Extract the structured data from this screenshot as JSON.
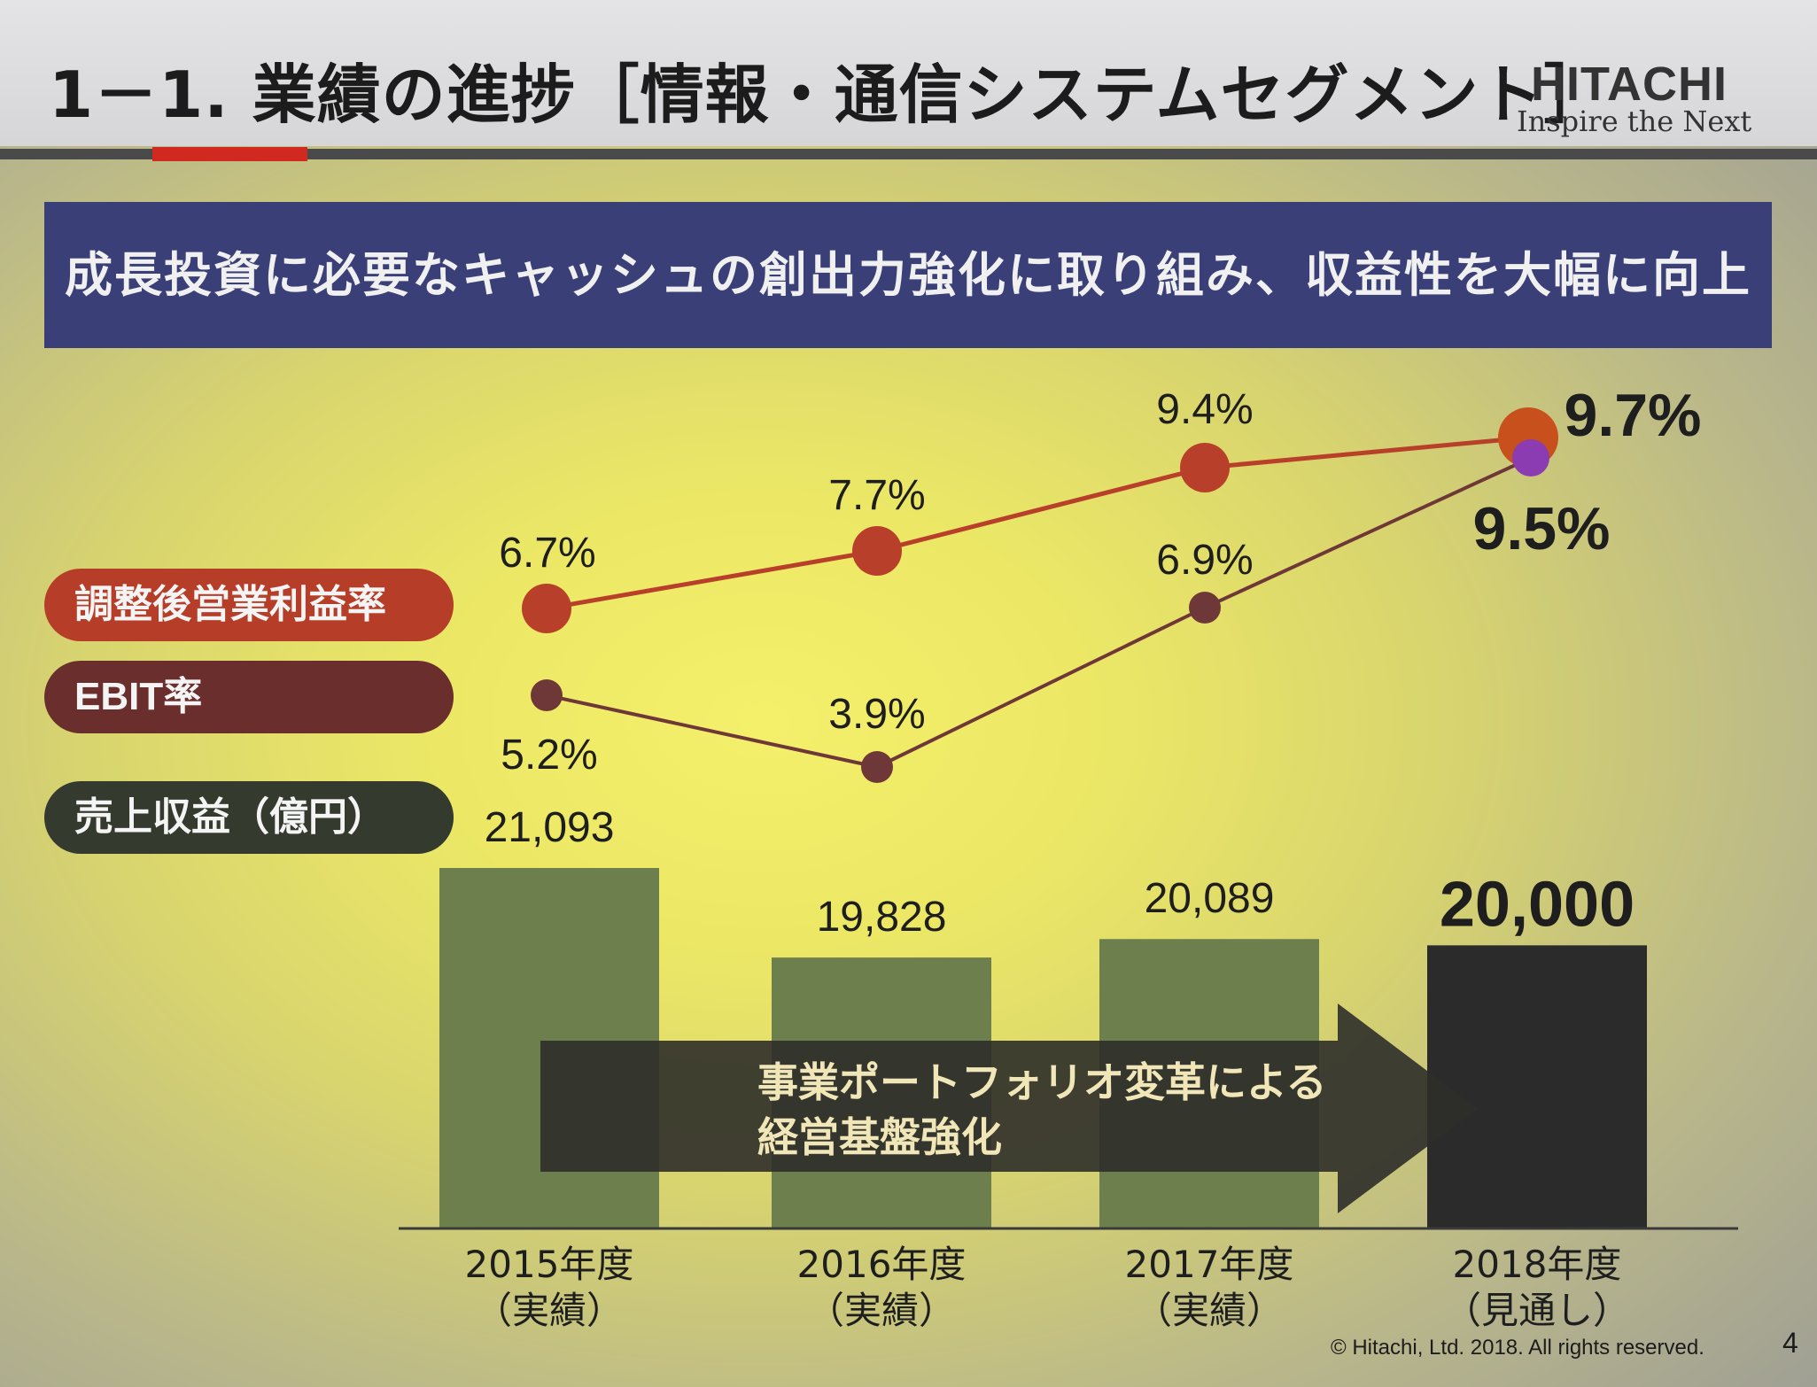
{
  "header": {
    "title": "1－1. 業績の進捗［情報・通信システムセグメント］",
    "logo_main": "HITACHI",
    "logo_sub": "Inspire the Next"
  },
  "banner": {
    "text": "成長投資に必要なキャッシュの創出力強化に取り組み、収益性を大幅に向上"
  },
  "legend": {
    "adjusted_margin": "調整後営業利益率",
    "ebit_margin": "EBIT率",
    "revenue": "売上収益（億円）"
  },
  "footer": {
    "copyright": "© Hitachi, Ltd. 2018. All rights reserved.",
    "page_number": "4"
  },
  "chart_data": {
    "type": "bar",
    "categories": [
      "2015年度",
      "2016年度",
      "2017年度",
      "2018年度"
    ],
    "category_notes": [
      "（実績）",
      "（実績）",
      "（実績）",
      "（見通し）"
    ],
    "series": [
      {
        "name": "売上収益（億円）",
        "values": [
          21093,
          19828,
          20089,
          20000
        ],
        "labels": [
          "21,093",
          "19,828",
          "20,089",
          "20,000"
        ],
        "color": "#6e7f4e",
        "forecast_color": "#2b2b2b"
      },
      {
        "name": "調整後営業利益率",
        "type": "line",
        "values": [
          6.7,
          7.7,
          9.4,
          9.7
        ],
        "labels": [
          "6.7%",
          "7.7%",
          "9.4%",
          "9.7%"
        ],
        "color": "#b8402a"
      },
      {
        "name": "EBIT率",
        "type": "line",
        "values": [
          5.2,
          3.9,
          6.9,
          9.5
        ],
        "labels": [
          "5.2%",
          "3.9%",
          "6.9%",
          "9.5%"
        ],
        "color": "#6f3838",
        "forecast_color": "#8a3cb0"
      }
    ],
    "annotation": {
      "lines": [
        "事業ポートフォリオ変革による",
        "経営基盤強化"
      ]
    },
    "colors": {
      "arrow": "#2e2e2a",
      "axis": "#3a3a3a"
    }
  }
}
